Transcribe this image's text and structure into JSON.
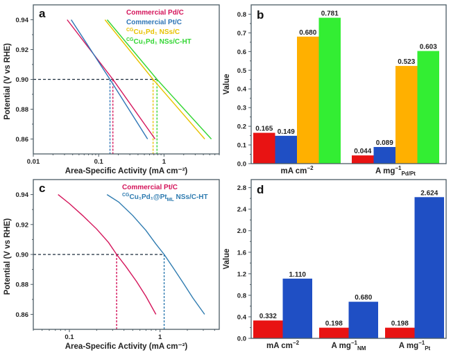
{
  "colors": {
    "pd_c": "#d4145a",
    "pt_c": "#2e75b6",
    "cu1pd1": "#e8c200",
    "cu1pd1_ht": "#33d633",
    "bar_red": "#e81313",
    "bar_blue": "#1f4fc4",
    "bar_orange": "#ffb000",
    "bar_green": "#33ee33",
    "pt_c_c": "#d4145a",
    "cu1pd1ptml": "#2e7bb0"
  },
  "chart_data": [
    {
      "panel": "a",
      "type": "line",
      "xscale": "log",
      "xlabel": "Area-Specific Activity (mA cm⁻²)",
      "ylabel": "Potential (V vs RHE)",
      "xlim": [
        0.01,
        7
      ],
      "ylim": [
        0.85,
        0.95
      ],
      "xticks": [
        0.01,
        0.1,
        1
      ],
      "xticklabels": [
        "0.01",
        "0.1",
        "1"
      ],
      "yticks": [
        0.86,
        0.88,
        0.9,
        0.92,
        0.94
      ],
      "yticklabels": [
        "0.86",
        "0.88",
        "0.90",
        "0.92",
        "0.94"
      ],
      "reference_potential": 0.9,
      "legend_position": "top-right",
      "series": [
        {
          "name": "Commercial Pd/C",
          "legend_sup": "",
          "legend_main": "Commercial Pd/C",
          "color_key": "pd_c",
          "x": [
            0.033,
            0.165,
            0.73
          ],
          "y": [
            0.94,
            0.9,
            0.86
          ],
          "activity_at_090": 0.165
        },
        {
          "name": "Commercial Pt/C",
          "legend_sup": "",
          "legend_main": "Commercial Pt/C",
          "color_key": "pt_c",
          "x": [
            0.038,
            0.149,
            0.56
          ],
          "y": [
            0.94,
            0.9,
            0.86
          ],
          "activity_at_090": 0.149
        },
        {
          "name": "CGCu1Pd1 NSs/C",
          "legend_sup": "CG",
          "legend_main": "Cu₁Pd₁ NSs/C",
          "color_key": "cu1pd1",
          "x": [
            0.125,
            0.68,
            4.2
          ],
          "y": [
            0.94,
            0.9,
            0.86
          ],
          "activity_at_090": 0.68
        },
        {
          "name": "CGCu1Pd1 NSs/C-HT",
          "legend_sup": "CG",
          "legend_main": "Cu₁Pd₁ NSs/C-HT",
          "color_key": "cu1pd1_ht",
          "x": [
            0.135,
            0.781,
            5.3
          ],
          "y": [
            0.94,
            0.9,
            0.86
          ],
          "activity_at_090": 0.781
        }
      ]
    },
    {
      "panel": "b",
      "type": "bar",
      "ylabel": "Value",
      "ylim": [
        0,
        0.85
      ],
      "yticks": [
        0.0,
        0.1,
        0.2,
        0.3,
        0.4,
        0.5,
        0.6,
        0.7,
        0.8
      ],
      "yticklabels": [
        "0.0",
        "0.1",
        "0.2",
        "0.3",
        "0.4",
        "0.5",
        "0.6",
        "0.7",
        "0.8"
      ],
      "categories": [
        {
          "main": "mA cm",
          "sup": "−2",
          "sub": ""
        },
        {
          "main": "A mg",
          "sup": "−1",
          "sub": "Pd/Pt"
        }
      ],
      "series": [
        {
          "name": "Commercial Pd/C",
          "color_key": "bar_red",
          "values": [
            0.165,
            0.044
          ],
          "labels": [
            "0.165",
            "0.044"
          ]
        },
        {
          "name": "Commercial Pt/C",
          "color_key": "bar_blue",
          "values": [
            0.149,
            0.089
          ],
          "labels": [
            "0.149",
            "0.089"
          ]
        },
        {
          "name": "CGCu1Pd1 NSs/C",
          "color_key": "bar_orange",
          "values": [
            0.68,
            0.523
          ],
          "labels": [
            "0.680",
            "0.523"
          ]
        },
        {
          "name": "CGCu1Pd1 NSs/C-HT",
          "color_key": "bar_green",
          "values": [
            0.781,
            0.603
          ],
          "labels": [
            "0.781",
            "0.603"
          ]
        }
      ]
    },
    {
      "panel": "c",
      "type": "line",
      "xscale": "log",
      "xlabel": "Area-Specific Activity (mA cm⁻²)",
      "ylabel": "Potential (V vs RHE)",
      "xlim": [
        0.04,
        4.5
      ],
      "ylim": [
        0.85,
        0.95
      ],
      "xticks": [
        0.1,
        1
      ],
      "xticklabels": [
        "0.1",
        "1"
      ],
      "yticks": [
        0.86,
        0.88,
        0.9,
        0.92,
        0.94
      ],
      "yticklabels": [
        "0.86",
        "0.88",
        "0.90",
        "0.92",
        "0.94"
      ],
      "reference_potential": 0.9,
      "legend_position": "top-right",
      "series": [
        {
          "name": "Commercial Pt/C",
          "legend_sup": "",
          "legend_main": "Commercial Pt/C",
          "legend_tail": "",
          "legend_sub": "",
          "color_key": "pt_c_c",
          "x": [
            0.075,
            0.1,
            0.14,
            0.2,
            0.27,
            0.332,
            0.42,
            0.55,
            0.7,
            0.9
          ],
          "y": [
            0.94,
            0.934,
            0.926,
            0.917,
            0.908,
            0.9,
            0.892,
            0.882,
            0.872,
            0.86
          ],
          "activity_at_090": 0.332
        },
        {
          "name": "CGCu1Pd1@PtML NSs/C-HT",
          "legend_sup": "CG",
          "legend_main": "Cu₁Pd₁@Pt",
          "legend_sub": "ML",
          "legend_tail": " NSs/C-HT",
          "color_key": "cu1pd1ptml",
          "x": [
            0.26,
            0.35,
            0.5,
            0.7,
            0.9,
            1.11,
            1.4,
            1.8,
            2.3,
            3.1
          ],
          "y": [
            0.94,
            0.935,
            0.926,
            0.916,
            0.907,
            0.9,
            0.891,
            0.881,
            0.871,
            0.86
          ],
          "activity_at_090": 1.11
        }
      ]
    },
    {
      "panel": "d",
      "type": "bar",
      "ylabel": "Value",
      "ylim": [
        0,
        2.95
      ],
      "yticks": [
        0.0,
        0.4,
        0.8,
        1.2,
        1.6,
        2.0,
        2.4,
        2.8
      ],
      "yticklabels": [
        "0.0",
        "0.4",
        "0.8",
        "1.2",
        "1.6",
        "2.0",
        "2.4",
        "2.8"
      ],
      "categories": [
        {
          "main": "mA cm",
          "sup": "−2",
          "sub": ""
        },
        {
          "main": "A mg",
          "sup": "−1",
          "sub": "NM"
        },
        {
          "main": "A mg",
          "sup": "−1",
          "sub": "Pt"
        }
      ],
      "series": [
        {
          "name": "Commercial Pt/C",
          "color_key": "bar_red",
          "values": [
            0.332,
            0.198,
            0.198
          ],
          "labels": [
            "0.332",
            "0.198",
            "0.198"
          ]
        },
        {
          "name": "CGCu1Pd1@PtML NSs/C-HT",
          "color_key": "bar_blue",
          "values": [
            1.11,
            0.68,
            2.624
          ],
          "labels": [
            "1.110",
            "0.680",
            "2.624"
          ]
        }
      ]
    }
  ]
}
